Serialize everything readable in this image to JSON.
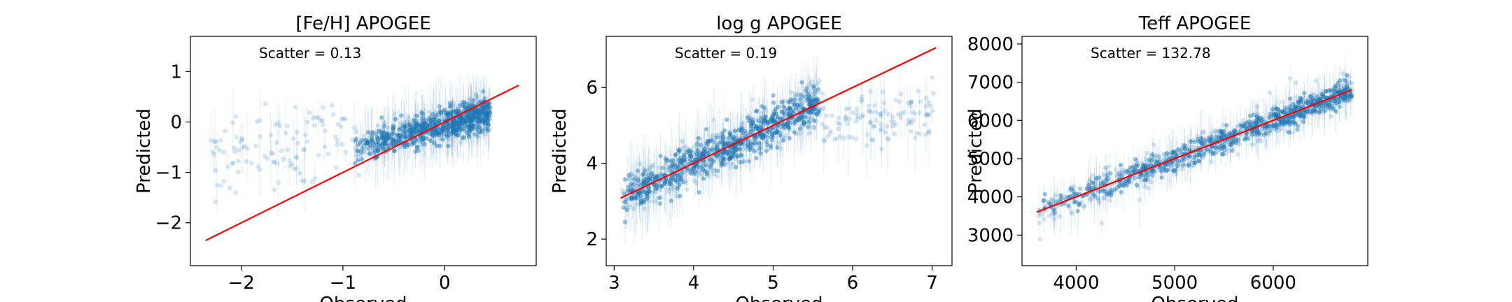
{
  "colors": {
    "points": "#1f77b4",
    "fit_line": "#ff0000",
    "axes": "#000000",
    "background": "#ffffff"
  },
  "chart_data": [
    {
      "type": "scatter",
      "title": "[Fe/H] APOGEE",
      "xlabel": "Observed",
      "ylabel": "Predicted",
      "annotation": "Scatter = 0.13",
      "xlim": [
        -2.5,
        0.9
      ],
      "ylim": [
        -2.85,
        1.7
      ],
      "xticks": [
        -2,
        -1,
        0
      ],
      "xtick_labels": [
        "−2",
        "−1",
        "0"
      ],
      "yticks": [
        -2,
        -1,
        0,
        1
      ],
      "ytick_labels": [
        "−2",
        "−1",
        "0",
        "1"
      ],
      "fit_line": [
        [
          -2.35,
          -2.35
        ],
        [
          0.73,
          0.73
        ]
      ],
      "grid": false,
      "points": {
        "n": 1100,
        "dense_range": [
          -0.9,
          0.45
        ],
        "sparse_range": [
          -2.3,
          -0.9
        ],
        "scatter": 0.13
      }
    },
    {
      "type": "scatter",
      "title": "log g APOGEE",
      "xlabel": "Observed",
      "ylabel": "Predicted",
      "annotation": "Scatter = 0.19",
      "xlim": [
        2.9,
        7.25
      ],
      "ylim": [
        1.3,
        7.35
      ],
      "xticks": [
        3,
        4,
        5,
        6,
        7
      ],
      "xtick_labels": [
        "3",
        "4",
        "5",
        "6",
        "7"
      ],
      "yticks": [
        2,
        4,
        6
      ],
      "ytick_labels": [
        "2",
        "4",
        "6"
      ],
      "fit_line": [
        [
          3.08,
          3.08
        ],
        [
          7.05,
          7.05
        ]
      ],
      "grid": false,
      "points": {
        "n": 1200,
        "dense_range": [
          3.1,
          5.6
        ],
        "sparse_range": [
          5.6,
          7.05
        ],
        "scatter": 0.19
      }
    },
    {
      "type": "scatter",
      "title": "Teff APOGEE",
      "xlabel": "Observed",
      "ylabel": "Predicted",
      "annotation": "Scatter = 132.78",
      "xlim": [
        3450,
        6960
      ],
      "ylim": [
        2200,
        8200
      ],
      "xticks": [
        4000,
        5000,
        6000
      ],
      "xtick_labels": [
        "4000",
        "5000",
        "6000"
      ],
      "yticks": [
        3000,
        4000,
        5000,
        6000,
        7000,
        8000
      ],
      "ytick_labels": [
        "3000",
        "4000",
        "5000",
        "6000",
        "7000",
        "8000"
      ],
      "fit_line": [
        [
          3600,
          3600
        ],
        [
          6800,
          6800
        ]
      ],
      "grid": false,
      "points": {
        "n": 1200,
        "dense_range": [
          3600,
          6800
        ],
        "sparse_range": [
          3600,
          6800
        ],
        "scatter": 132.78
      }
    }
  ]
}
